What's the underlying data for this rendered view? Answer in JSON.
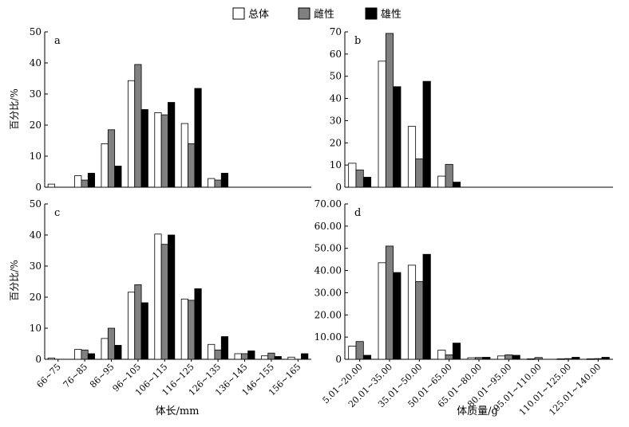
{
  "legend": {
    "placement": "top-center",
    "entries": [
      {
        "label": "总体",
        "color": "#ffffff"
      },
      {
        "label": "雌性",
        "color": "#808080"
      },
      {
        "label": "雄性",
        "color": "#000000"
      }
    ]
  },
  "axis_labels": {
    "y_left": "百分比/%",
    "x_left": "体长/mm",
    "x_right": "体质量/g"
  },
  "chart_data": [
    {
      "type": "bar",
      "panel": "a",
      "categories": [
        "66~75",
        "76~85",
        "86~95",
        "96~105",
        "106~115",
        "116~125",
        "126~135",
        "136~145",
        "146~155",
        "156~165"
      ],
      "series": [
        {
          "name": "总体",
          "values": [
            1.0,
            3.7,
            14.0,
            34.3,
            24.0,
            20.5,
            2.8,
            0,
            0,
            0
          ]
        },
        {
          "name": "雌性",
          "values": [
            0,
            2.3,
            18.5,
            39.5,
            23.3,
            14.0,
            2.3,
            0,
            0,
            0
          ]
        },
        {
          "name": "雄性",
          "values": [
            0,
            4.5,
            6.8,
            25.0,
            27.3,
            31.8,
            4.5,
            0,
            0,
            0
          ]
        }
      ],
      "ylim": [
        0,
        50
      ],
      "yticks": [
        0,
        10,
        20,
        30,
        40,
        50
      ]
    },
    {
      "type": "bar",
      "panel": "b",
      "categories": [
        "5.01~20.00",
        "20.01~35.00",
        "35.01~50.00",
        "50.01~65.00",
        "65.01~80.00",
        "80.01~95.00",
        "95.01~110.00",
        "110.01~125.00",
        "125.01~140.00"
      ],
      "series": [
        {
          "name": "总体",
          "values": [
            10.8,
            56.8,
            27.4,
            5.0,
            0,
            0,
            0,
            0,
            0
          ]
        },
        {
          "name": "雌性",
          "values": [
            7.8,
            69.3,
            12.8,
            10.3,
            0,
            0,
            0,
            0,
            0
          ]
        },
        {
          "name": "雄性",
          "values": [
            4.5,
            45.3,
            47.7,
            2.3,
            0,
            0,
            0,
            0,
            0
          ]
        }
      ],
      "ylim": [
        0,
        70
      ],
      "yticks": [
        "0",
        "10",
        "20",
        "30",
        "40",
        "50",
        "60",
        "70"
      ]
    },
    {
      "type": "bar",
      "panel": "c",
      "categories": [
        "66~75",
        "76~85",
        "86~95",
        "96~105",
        "106~115",
        "116~125",
        "126~135",
        "136~145",
        "146~155",
        "156~165"
      ],
      "series": [
        {
          "name": "总体",
          "values": [
            0.4,
            3.2,
            6.7,
            21.6,
            40.3,
            19.4,
            4.8,
            1.8,
            1.1,
            0.7
          ]
        },
        {
          "name": "雌性",
          "values": [
            0,
            3.0,
            10.0,
            24.0,
            37.0,
            19.0,
            3.0,
            1.8,
            2.0,
            0
          ]
        },
        {
          "name": "雄性",
          "values": [
            0,
            1.8,
            4.5,
            18.2,
            40.0,
            22.7,
            7.3,
            2.7,
            0.9,
            1.8
          ]
        }
      ],
      "ylim": [
        0,
        50
      ],
      "yticks": [
        "0",
        "10",
        "20",
        "30",
        "40",
        "50"
      ]
    },
    {
      "type": "bar",
      "panel": "d",
      "categories": [
        "5.01~20.00",
        "20.01~35.00",
        "35.01~50.00",
        "50.01~65.00",
        "65.01~80.00",
        "80.01~95.00",
        "95.01~110.00",
        "110.01~125.00",
        "125.01~140.00"
      ],
      "series": [
        {
          "name": "总体",
          "values": [
            5.9,
            43.5,
            42.4,
            4.1,
            0.7,
            1.5,
            0.2,
            0.2,
            0.2
          ]
        },
        {
          "name": "雌性",
          "values": [
            8.0,
            51.0,
            35.0,
            2.0,
            0.8,
            2.0,
            0.8,
            0.3,
            0.3
          ]
        },
        {
          "name": "雄性",
          "values": [
            1.8,
            39.1,
            47.3,
            7.3,
            0.9,
            1.8,
            0,
            0.9,
            0.9
          ]
        }
      ],
      "ylim": [
        0,
        70
      ],
      "yticks": [
        "0",
        "10.00",
        "20.00",
        "30.00",
        "40.00",
        "50.00",
        "60.00",
        "70.00"
      ]
    }
  ]
}
